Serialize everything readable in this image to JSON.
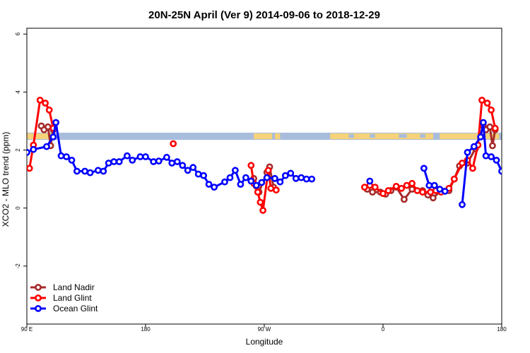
{
  "chart_data": {
    "type": "line",
    "title": "20N-25N April (Ver 9)   2014-09-06 to 2018-12-29",
    "xlabel": "Longitude",
    "ylabel": "XCO2 - MLO trend (ppm)",
    "xlim": [
      90,
      450
    ],
    "ylim": [
      -4,
      6.2
    ],
    "x_ticks": [
      {
        "value": 90,
        "label": "90 E"
      },
      {
        "value": 180,
        "label": "180"
      },
      {
        "value": 270,
        "label": "90 W"
      },
      {
        "value": 360,
        "label": "0"
      },
      {
        "value": 450,
        "label": "180"
      }
    ],
    "y_ticks": [
      {
        "value": -2,
        "label": "-2"
      },
      {
        "value": 0,
        "label": "0"
      },
      {
        "value": 2,
        "label": "2"
      },
      {
        "value": 4,
        "label": "4"
      },
      {
        "value": 6,
        "label": "6"
      }
    ],
    "grid": false,
    "legend": "bottom-left",
    "land_band": {
      "y_from": 2.35,
      "y_to": 2.6,
      "ocean_color": "#a8bddc",
      "land_color": "#f6d27a"
    },
    "series": [
      {
        "name": "Land Nadir",
        "color": "#a52a2a",
        "points": [
          [
            101,
            2.83
          ],
          [
            103,
            2.7
          ],
          [
            106,
            2.8
          ],
          [
            108,
            2.15
          ],
          [
            110,
            2.7
          ],
          [
            262,
            1.02
          ],
          [
            264,
            0.75
          ],
          [
            266,
            0.55
          ],
          [
            272,
            1.23
          ],
          [
            274,
            1.42
          ],
          [
            277,
            0.72
          ],
          [
            348,
            0.65
          ],
          [
            352,
            0.55
          ],
          [
            358,
            0.55
          ],
          [
            362,
            0.48
          ],
          [
            366,
            0.6
          ],
          [
            370,
            0.72
          ],
          [
            376,
            0.3
          ],
          [
            382,
            0.65
          ],
          [
            390,
            0.6
          ],
          [
            394,
            0.45
          ],
          [
            398,
            0.35
          ],
          [
            404,
            0.6
          ],
          [
            410,
            0.6
          ],
          [
            414,
            1.0
          ],
          [
            418,
            1.45
          ],
          [
            424,
            1.55
          ],
          [
            430,
            2.05
          ],
          [
            436,
            2.83
          ],
          [
            438,
            2.7
          ],
          [
            441,
            2.8
          ],
          [
            443,
            2.15
          ],
          [
            445,
            2.7
          ]
        ]
      },
      {
        "name": "Land Glint",
        "color": "#ff0000",
        "points": [
          [
            92,
            1.37
          ],
          [
            95,
            2.17
          ],
          [
            100,
            3.72
          ],
          [
            104,
            3.62
          ],
          [
            107,
            3.38
          ],
          [
            110,
            2.75
          ],
          [
            201,
            2.22
          ],
          [
            260,
            1.47
          ],
          [
            262,
            0.85
          ],
          [
            265,
            0.55
          ],
          [
            267,
            0.2
          ],
          [
            269,
            -0.08
          ],
          [
            273,
            1.3
          ],
          [
            275,
            0.68
          ],
          [
            279,
            0.62
          ],
          [
            346,
            0.72
          ],
          [
            350,
            0.78
          ],
          [
            354,
            0.72
          ],
          [
            360,
            0.5
          ],
          [
            364,
            0.6
          ],
          [
            370,
            0.75
          ],
          [
            374,
            0.68
          ],
          [
            378,
            0.78
          ],
          [
            382,
            0.85
          ],
          [
            386,
            0.6
          ],
          [
            390,
            0.55
          ],
          [
            396,
            0.55
          ],
          [
            400,
            0.6
          ],
          [
            404,
            0.55
          ],
          [
            410,
            0.68
          ],
          [
            414,
            1.0
          ],
          [
            420,
            1.55
          ],
          [
            424,
            1.65
          ],
          [
            428,
            1.37
          ],
          [
            432,
            2.17
          ],
          [
            435,
            3.72
          ],
          [
            439,
            3.62
          ],
          [
            442,
            3.38
          ],
          [
            445,
            2.75
          ]
        ]
      },
      {
        "name": "Ocean Glint",
        "color": "#0000ff",
        "points": [
          [
            90,
            1.92
          ],
          [
            95,
            2.02
          ],
          [
            105,
            2.12
          ],
          [
            110,
            2.45
          ],
          [
            112,
            2.95
          ],
          [
            116,
            1.8
          ],
          [
            120,
            1.77
          ],
          [
            124,
            1.65
          ],
          [
            128,
            1.27
          ],
          [
            134,
            1.27
          ],
          [
            138,
            1.22
          ],
          [
            144,
            1.3
          ],
          [
            148,
            1.27
          ],
          [
            152,
            1.55
          ],
          [
            156,
            1.6
          ],
          [
            160,
            1.6
          ],
          [
            166,
            1.8
          ],
          [
            170,
            1.65
          ],
          [
            176,
            1.77
          ],
          [
            180,
            1.77
          ],
          [
            186,
            1.6
          ],
          [
            190,
            1.62
          ],
          [
            196,
            1.75
          ],
          [
            200,
            1.55
          ],
          [
            204,
            1.6
          ],
          [
            208,
            1.47
          ],
          [
            212,
            1.3
          ],
          [
            216,
            1.4
          ],
          [
            220,
            1.17
          ],
          [
            224,
            1.12
          ],
          [
            228,
            0.82
          ],
          [
            232,
            0.72
          ],
          [
            240,
            0.9
          ],
          [
            244,
            1.05
          ],
          [
            248,
            1.3
          ],
          [
            252,
            0.82
          ],
          [
            256,
            1.05
          ],
          [
            260,
            0.93
          ],
          [
            264,
            0.78
          ],
          [
            268,
            0.88
          ],
          [
            272,
            1.05
          ],
          [
            278,
            1.02
          ],
          [
            282,
            0.9
          ],
          [
            286,
            1.12
          ],
          [
            290,
            1.2
          ],
          [
            294,
            1.02
          ],
          [
            298,
            1.05
          ],
          [
            302,
            1.0
          ],
          [
            306,
            1.0
          ],
          [
            350,
            0.93
          ],
          [
            391,
            1.37
          ],
          [
            395,
            0.78
          ],
          [
            399,
            0.78
          ],
          [
            403,
            0.65
          ],
          [
            407,
            0.58
          ],
          [
            420,
            0.12
          ],
          [
            424,
            1.92
          ],
          [
            429,
            2.12
          ],
          [
            434,
            2.45
          ],
          [
            436,
            2.95
          ],
          [
            438,
            1.8
          ],
          [
            442,
            1.77
          ],
          [
            446,
            1.65
          ],
          [
            450,
            1.27
          ]
        ]
      }
    ]
  }
}
